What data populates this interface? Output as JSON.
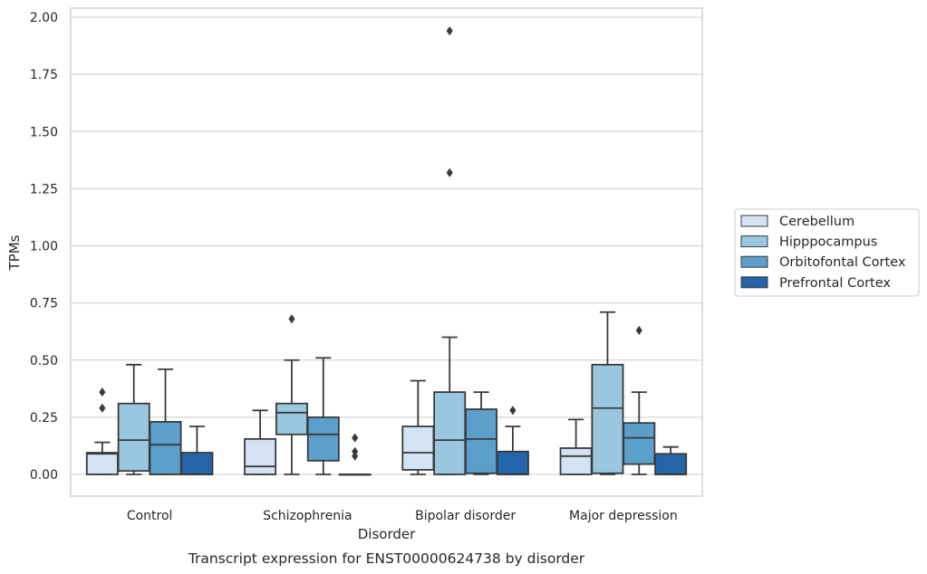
{
  "caption": "Transcript expression for ENST00000624738 by disorder",
  "chart_data": {
    "type": "box",
    "xlabel": "Disorder",
    "ylabel": "TPMs",
    "ylim": [
      -0.09,
      2.04
    ],
    "yticks": [
      "0.00",
      "0.25",
      "0.50",
      "0.75",
      "1.00",
      "1.25",
      "1.50",
      "1.75",
      "2.00"
    ],
    "grid": "horizontal",
    "legend_position": "right",
    "categories": [
      "Control",
      "Schizophrenia",
      "Bipolar disorder",
      "Major depression"
    ],
    "series": [
      {
        "name": "Cerebellum",
        "color": "#d3e3f3",
        "boxes": [
          {
            "whisker_low": 0.0,
            "q1": 0.0,
            "median": 0.09,
            "q3": 0.095,
            "whisker_high": 0.14,
            "outliers": [
              0.29,
              0.36
            ]
          },
          {
            "whisker_low": 0.0,
            "q1": 0.0,
            "median": 0.035,
            "q3": 0.155,
            "whisker_high": 0.28,
            "outliers": []
          },
          {
            "whisker_low": 0.0,
            "q1": 0.02,
            "median": 0.095,
            "q3": 0.21,
            "whisker_high": 0.41,
            "outliers": []
          },
          {
            "whisker_low": 0.0,
            "q1": 0.0,
            "median": 0.08,
            "q3": 0.115,
            "whisker_high": 0.24,
            "outliers": []
          }
        ]
      },
      {
        "name": "Hipppocampus",
        "color": "#9ac7e0",
        "boxes": [
          {
            "whisker_low": 0.0,
            "q1": 0.015,
            "median": 0.15,
            "q3": 0.31,
            "whisker_high": 0.48,
            "outliers": []
          },
          {
            "whisker_low": 0.0,
            "q1": 0.175,
            "median": 0.27,
            "q3": 0.31,
            "whisker_high": 0.5,
            "outliers": [
              0.68
            ]
          },
          {
            "whisker_low": 0.0,
            "q1": 0.0,
            "median": 0.15,
            "q3": 0.36,
            "whisker_high": 0.6,
            "outliers": [
              1.32,
              1.94
            ]
          },
          {
            "whisker_low": 0.0,
            "q1": 0.005,
            "median": 0.29,
            "q3": 0.48,
            "whisker_high": 0.71,
            "outliers": []
          }
        ]
      },
      {
        "name": "Orbitofontal Cortex",
        "color": "#5b9fcb",
        "boxes": [
          {
            "whisker_low": 0.0,
            "q1": 0.0,
            "median": 0.13,
            "q3": 0.23,
            "whisker_high": 0.46,
            "outliers": []
          },
          {
            "whisker_low": 0.0,
            "q1": 0.06,
            "median": 0.175,
            "q3": 0.25,
            "whisker_high": 0.51,
            "outliers": []
          },
          {
            "whisker_low": 0.0,
            "q1": 0.005,
            "median": 0.155,
            "q3": 0.285,
            "whisker_high": 0.36,
            "outliers": []
          },
          {
            "whisker_low": 0.0,
            "q1": 0.045,
            "median": 0.16,
            "q3": 0.225,
            "whisker_high": 0.36,
            "outliers": [
              0.63
            ]
          }
        ]
      },
      {
        "name": "Prefrontal Cortex",
        "color": "#2464a8",
        "boxes": [
          {
            "whisker_low": 0.0,
            "q1": 0.0,
            "median": 0.0,
            "q3": 0.095,
            "whisker_high": 0.21,
            "outliers": []
          },
          {
            "whisker_low": 0.0,
            "q1": 0.0,
            "median": 0.0,
            "q3": 0.0,
            "whisker_high": 0.0,
            "outliers": [
              0.08,
              0.1,
              0.16
            ]
          },
          {
            "whisker_low": 0.0,
            "q1": 0.0,
            "median": 0.0,
            "q3": 0.1,
            "whisker_high": 0.21,
            "outliers": [
              0.28
            ]
          },
          {
            "whisker_low": 0.0,
            "q1": 0.0,
            "median": 0.0,
            "q3": 0.09,
            "whisker_high": 0.12,
            "outliers": []
          }
        ]
      }
    ]
  }
}
